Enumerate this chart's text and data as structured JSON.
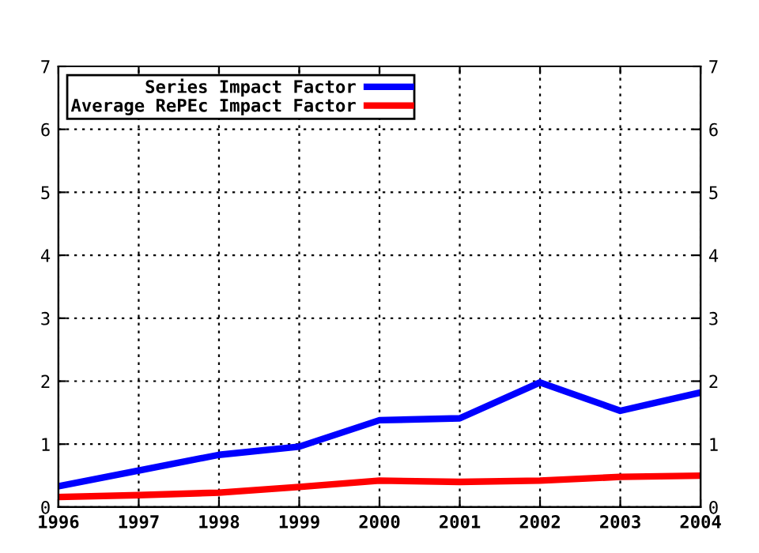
{
  "chart_data": {
    "type": "line",
    "x": [
      1996,
      1997,
      1998,
      1999,
      2000,
      2001,
      2002,
      2003,
      2004
    ],
    "series": [
      {
        "name": "Series Impact Factor",
        "color": "#0000ff",
        "values": [
          0.33,
          0.58,
          0.83,
          0.96,
          1.38,
          1.41,
          1.98,
          1.53,
          1.82
        ]
      },
      {
        "name": "Average RePEc Impact Factor",
        "color": "#ff0000",
        "values": [
          0.16,
          0.19,
          0.23,
          0.32,
          0.42,
          0.4,
          0.42,
          0.48,
          0.5
        ]
      }
    ],
    "xlim": [
      1996,
      2004
    ],
    "xticks": [
      1996,
      1997,
      1998,
      1999,
      2000,
      2001,
      2002,
      2003,
      2004
    ],
    "ylim": [
      0,
      7
    ],
    "yticks": [
      0,
      1,
      2,
      3,
      4,
      5,
      6,
      7
    ],
    "y2lim": [
      0,
      7
    ],
    "y2ticks": [
      0,
      1,
      2,
      3,
      4,
      5,
      6,
      7
    ],
    "grid": true,
    "legend": "top left",
    "marker": "none",
    "line_style": "solid"
  }
}
